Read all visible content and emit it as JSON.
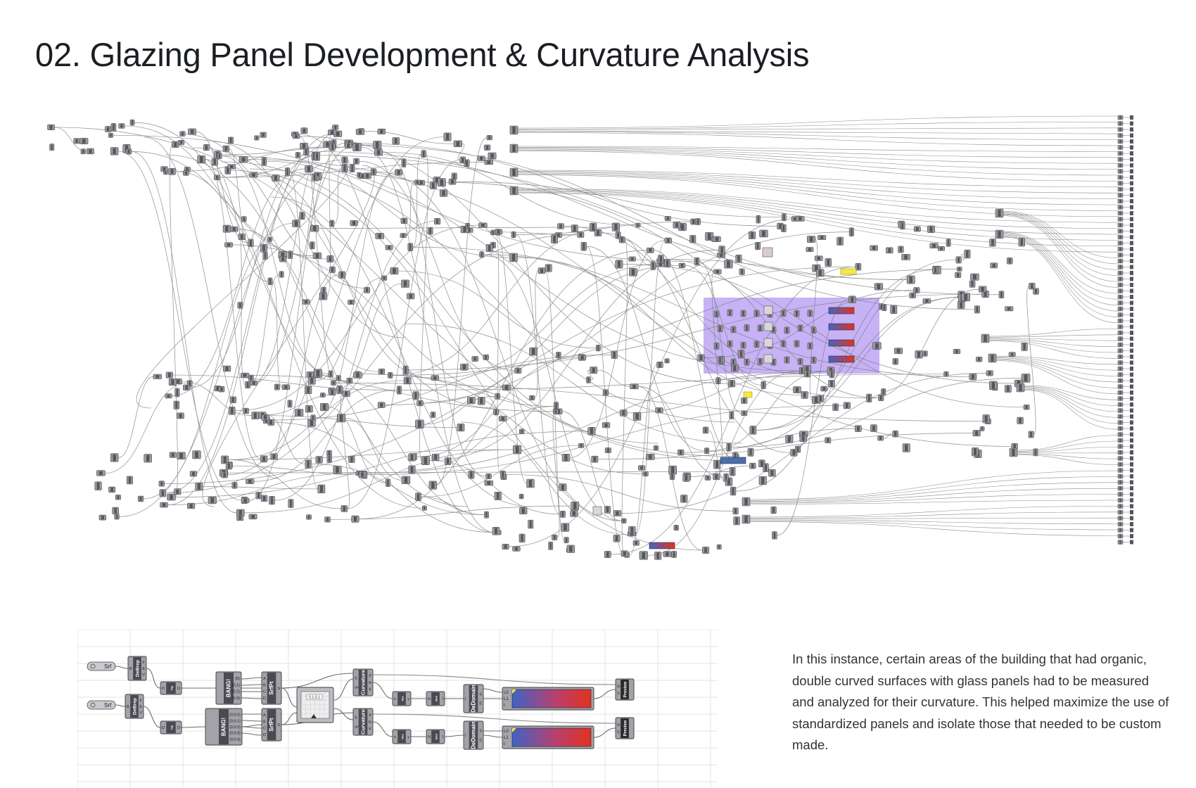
{
  "page": {
    "title": "02. Glazing Panel Development & Curvature Analysis",
    "description": "In this instance, certain areas of the building that had organic, double curved surfaces with glass panels had to be measured and analyzed for their curvature. This helped maximize the use of standardized panels and isolate those that needed to be custom made."
  },
  "colors": {
    "canvas_grid": "#e3e3e3",
    "component": "#8f8f95",
    "component_dark": "#55555d",
    "wire": "#7a7a7a",
    "group_purple": "#c6b2f5",
    "panel_yellow": "#f4ea43",
    "gradient_start": "#3f63c6",
    "gradient_end": "#e2321e",
    "preview_blue": "#4b6db0"
  },
  "detail": {
    "components": [
      {
        "name": "srf-param-1",
        "label": "Srf"
      },
      {
        "name": "srf-param-2",
        "label": "Srf"
      },
      {
        "name": "debrep-1",
        "label": "DeBrep",
        "inputs": [
          "B"
        ],
        "outputs": [
          "F",
          "E",
          "V"
        ]
      },
      {
        "name": "debrep-2",
        "label": "DeBrep",
        "inputs": [
          "B"
        ],
        "outputs": [
          "F",
          "E",
          "V"
        ]
      },
      {
        "name": "flip-1",
        "label": "Flip",
        "inputs": [
          "D"
        ],
        "outputs": [
          "D"
        ]
      },
      {
        "name": "flip-2",
        "label": "Flip",
        "inputs": [
          "D"
        ],
        "outputs": [
          "D"
        ]
      },
      {
        "name": "bang-1",
        "label": "BANG!",
        "outputs": [
          "{0}",
          "{0;1}",
          "{0;2}",
          "{0;3}"
        ]
      },
      {
        "name": "bang-2",
        "label": "BANG!",
        "outputs": [
          "{0;0;0}",
          "{0;0;1}",
          "{0;0;2}",
          "{0;0;3}",
          "{0;0;4}"
        ]
      },
      {
        "name": "srfpt-1",
        "label": "SrfPt",
        "inputs": [
          "A",
          "B",
          "C",
          "D"
        ],
        "outputs": [
          "S"
        ]
      },
      {
        "name": "srfpt-2",
        "label": "SrfPt",
        "inputs": [
          "A",
          "B",
          "C",
          "D"
        ],
        "outputs": [
          "S"
        ]
      },
      {
        "name": "curvature-1",
        "label": "Curvature",
        "inputs": [
          "S",
          "uv"
        ],
        "outputs": [
          "P",
          "N",
          "K"
        ]
      },
      {
        "name": "curvature-2",
        "label": "Curvature",
        "inputs": [
          "S",
          "uv"
        ],
        "outputs": [
          "P",
          "N",
          "K"
        ]
      },
      {
        "name": "abs-1",
        "label": "Abs",
        "inputs": [
          "x"
        ],
        "outputs": [
          "y"
        ]
      },
      {
        "name": "abs-2",
        "label": "Abs",
        "inputs": [
          "x"
        ],
        "outputs": [
          "y"
        ]
      },
      {
        "name": "bnd-1",
        "label": "Bnd",
        "inputs": [
          "N"
        ],
        "outputs": [
          "I"
        ]
      },
      {
        "name": "bnd-2",
        "label": "Bnd",
        "inputs": [
          "N"
        ],
        "outputs": [
          "I"
        ]
      },
      {
        "name": "dedomain-1",
        "label": "DeDomain",
        "inputs": [
          "I"
        ],
        "outputs": [
          "S",
          "E"
        ]
      },
      {
        "name": "dedomain-2",
        "label": "DeDomain",
        "inputs": [
          "I"
        ],
        "outputs": [
          "S",
          "E"
        ]
      },
      {
        "name": "gradient-1",
        "label": "",
        "inputs": [
          "L0",
          "L1",
          "t"
        ]
      },
      {
        "name": "gradient-2",
        "label": "",
        "inputs": [
          "L0",
          "L1",
          "t"
        ]
      },
      {
        "name": "preview-1",
        "label": "Preview",
        "inputs": [
          "G",
          "S"
        ]
      },
      {
        "name": "preview-2",
        "label": "Preview",
        "inputs": [
          "G",
          "S"
        ]
      }
    ],
    "domain_widget": "0.1-0.1"
  }
}
